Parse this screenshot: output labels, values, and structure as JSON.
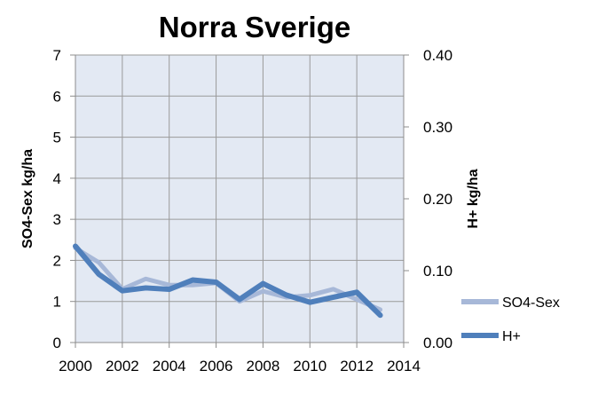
{
  "chart_data": {
    "type": "line",
    "title": "Norra Sverige",
    "ylabel": "SO4-Sex kg/ha",
    "y2label": "H+ kg/ha",
    "xlim": [
      2000,
      2014
    ],
    "xticks": [
      "2000",
      "2002",
      "2004",
      "2006",
      "2008",
      "2010",
      "2012",
      "2014"
    ],
    "ylim": [
      0,
      7
    ],
    "yticks": [
      "0",
      "1",
      "2",
      "3",
      "4",
      "5",
      "6",
      "7"
    ],
    "y2lim": [
      0,
      0.4
    ],
    "y2ticks": [
      "0.00",
      "0.10",
      "0.20",
      "0.30",
      "0.40"
    ],
    "grid": true,
    "legend_position": "right-bottom",
    "series": [
      {
        "name": "SO4-Sex",
        "axis": "left",
        "color": "#a7b8d8",
        "x": [
          2000,
          2001,
          2002,
          2003,
          2004,
          2005,
          2006,
          2007,
          2008,
          2009,
          2010,
          2011,
          2012,
          2013
        ],
        "values": [
          2.3,
          1.95,
          1.3,
          1.55,
          1.4,
          1.4,
          1.45,
          1.0,
          1.25,
          1.1,
          1.15,
          1.3,
          1.05,
          0.8
        ]
      },
      {
        "name": "H+",
        "axis": "right",
        "color": "#4f7fbb",
        "x": [
          2000,
          2001,
          2002,
          2003,
          2004,
          2005,
          2006,
          2007,
          2008,
          2009,
          2010,
          2011,
          2012,
          2013
        ],
        "values": [
          0.134,
          0.095,
          0.072,
          0.076,
          0.074,
          0.087,
          0.084,
          0.06,
          0.082,
          0.066,
          0.056,
          0.063,
          0.07,
          0.038
        ]
      }
    ]
  }
}
